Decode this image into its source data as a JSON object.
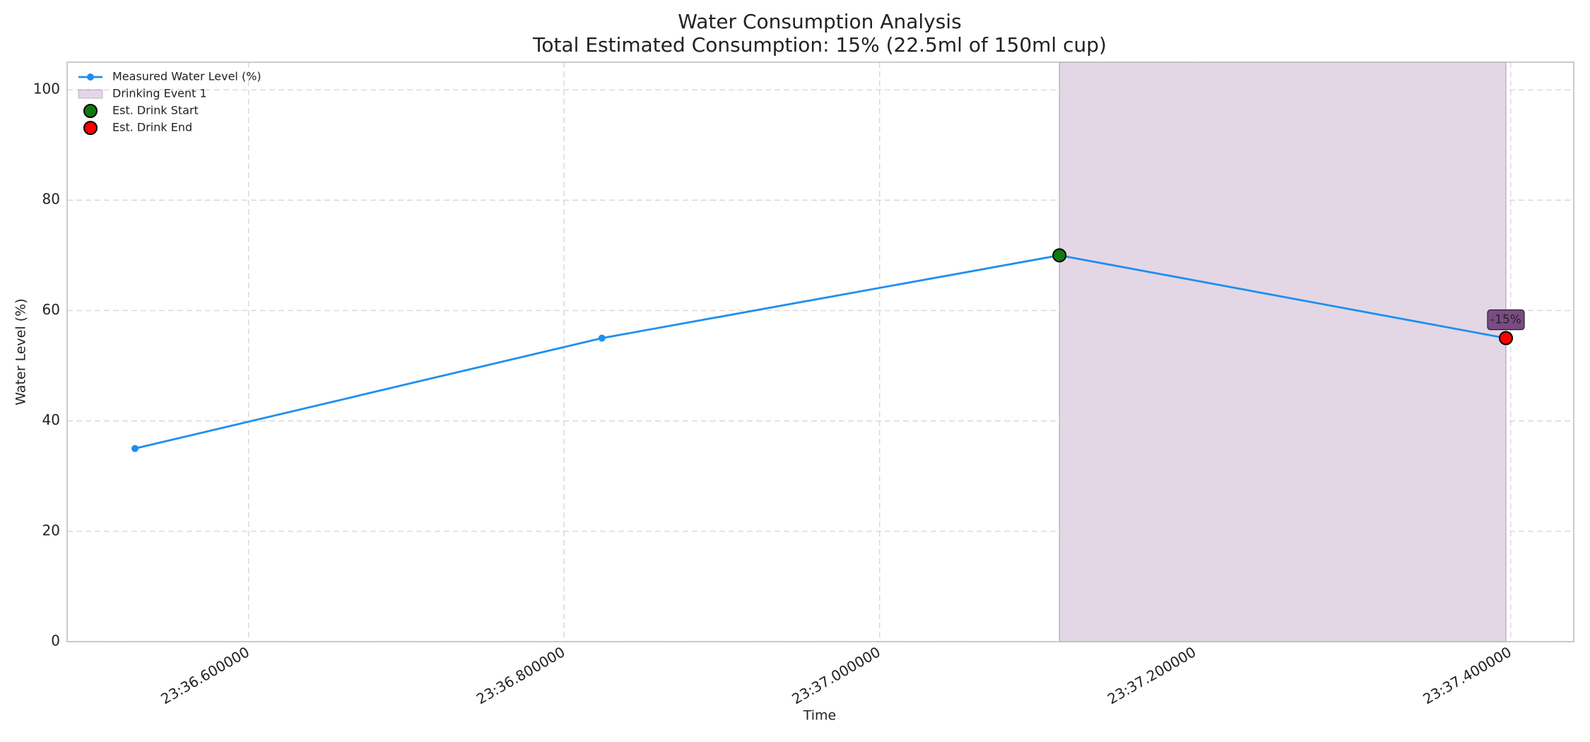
{
  "chart_data": {
    "type": "line",
    "title": "Water Consumption Analysis",
    "subtitle": "Total Estimated Consumption: 15% (22.5ml of 150ml cup)",
    "x_label": "Time",
    "y_label": "Water Level (%)",
    "x": [
      1416.528,
      1416.824,
      1417.114,
      1417.397
    ],
    "series": [
      {
        "name": "Measured Water Level (%)",
        "color": "#1e8ff0",
        "values": [
          35,
          55,
          70,
          55
        ]
      }
    ],
    "spans": [
      {
        "name": "Drinking Event 1",
        "color": "#9c6fa6",
        "start": 1417.114,
        "end": 1417.397
      }
    ],
    "drink_start": {
      "name": "Est. Drink Start",
      "color": "#0f7a0f",
      "x": 1417.114,
      "y": 70
    },
    "drink_end": {
      "name": "Est. Drink End",
      "color": "#ff0000",
      "x": 1417.397,
      "y": 55
    },
    "annotations": [
      {
        "text": "-15%",
        "x": 1417.397,
        "y": 55,
        "color": "#7b4b84"
      }
    ],
    "xlim": [
      1416.485,
      1417.44
    ],
    "xticks": [
      {
        "value": 1416.6,
        "label": "23:36.600000"
      },
      {
        "value": 1416.8,
        "label": "23:36.800000"
      },
      {
        "value": 1417.0,
        "label": "23:37.000000"
      },
      {
        "value": 1417.2,
        "label": "23:37.200000"
      },
      {
        "value": 1417.4,
        "label": "23:37.400000"
      }
    ],
    "ylim": [
      0,
      105
    ],
    "yticks": [
      0,
      20,
      40,
      60,
      80,
      100
    ],
    "grid": true,
    "legend": "upper left"
  }
}
